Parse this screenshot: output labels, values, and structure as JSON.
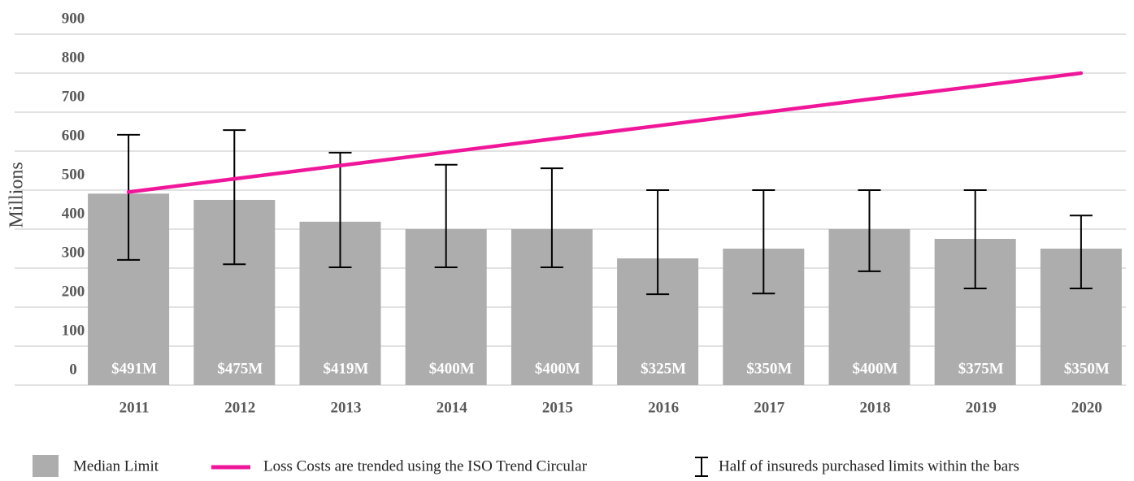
{
  "chart_data": {
    "type": "bar",
    "y_label": "Millions",
    "categories": [
      "2011",
      "2012",
      "2013",
      "2014",
      "2015",
      "2016",
      "2017",
      "2018",
      "2019",
      "2020"
    ],
    "series": [
      {
        "name": "Median Limit",
        "color": "#adadad",
        "values": [
          491,
          475,
          419,
          400,
          400,
          325,
          350,
          400,
          375,
          350
        ],
        "value_labels": [
          "$491M",
          "$475M",
          "$419M",
          "$400M",
          "$400M",
          "$325M",
          "$350M",
          "$400M",
          "$375M",
          "$350M"
        ]
      },
      {
        "name": "Loss Costs are trended using the ISO Trend Circular",
        "type": "line",
        "color": "#f0169a",
        "values": [
          495,
          529,
          563,
          597,
          631,
          665,
          699,
          733,
          766,
          800
        ]
      }
    ],
    "error_bars": {
      "name": "Half of insureds purchased limits within the bars",
      "low": [
        321,
        310,
        302,
        302,
        302,
        233,
        235,
        292,
        248,
        248
      ],
      "high": [
        642,
        654,
        596,
        565,
        556,
        500,
        500,
        500,
        500,
        435
      ]
    },
    "ylim": [
      0,
      900
    ],
    "yticks": [
      0,
      100,
      200,
      300,
      400,
      500,
      600,
      700,
      800,
      900
    ],
    "grid": true
  }
}
